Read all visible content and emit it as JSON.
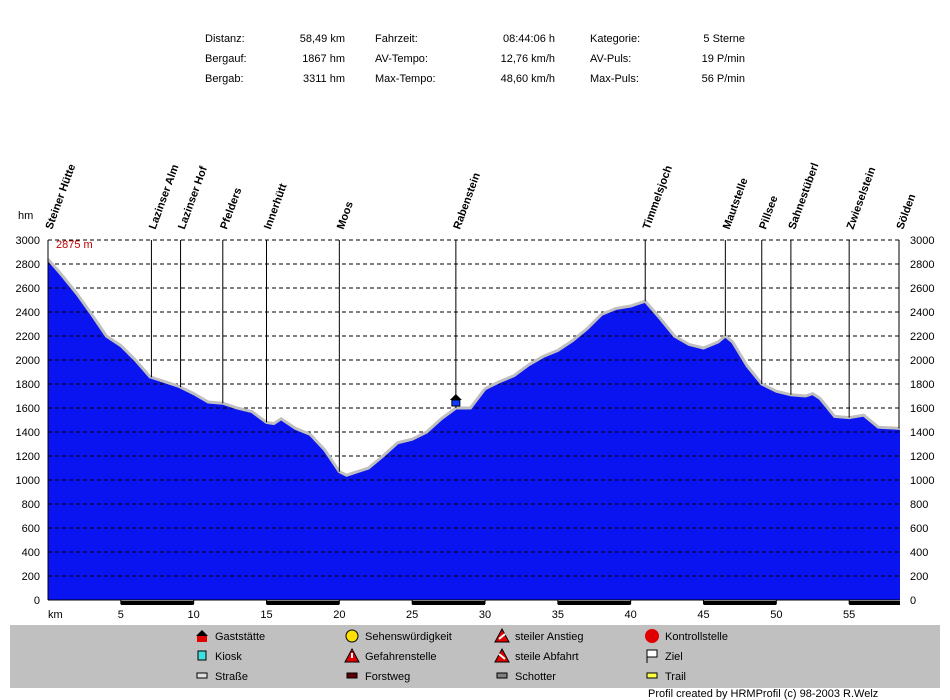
{
  "stats": [
    [
      {
        "label": "Distanz:",
        "value": "58,49 km"
      },
      {
        "label": "Fahrzeit:",
        "value": "08:44:06 h"
      },
      {
        "label": "Kategorie:",
        "value": "5 Sterne"
      }
    ],
    [
      {
        "label": "Bergauf:",
        "value": "1867 hm"
      },
      {
        "label": "AV-Tempo:",
        "value": "12,76 km/h"
      },
      {
        "label": "AV-Puls:",
        "value": "19 P/min"
      }
    ],
    [
      {
        "label": "Bergab:",
        "value": "3311 hm"
      },
      {
        "label": "Max-Tempo:",
        "value": "48,60 km/h"
      },
      {
        "label": "Max-Puls:",
        "value": "56 P/min"
      }
    ]
  ],
  "chart_data": {
    "type": "area",
    "x_label": "km",
    "y_label": "hm",
    "annotation": "2875 m",
    "color": "#0a14f0",
    "edge_color": "#bfbfbf",
    "grid": true,
    "xlim": [
      0,
      58.49
    ],
    "ylim": [
      0,
      3000
    ],
    "xticks": [
      5,
      10,
      15,
      20,
      25,
      30,
      35,
      40,
      45,
      50,
      55
    ],
    "yticks": [
      0,
      200,
      400,
      600,
      800,
      1000,
      1200,
      1400,
      1600,
      1800,
      2000,
      2200,
      2400,
      2600,
      2800,
      3000
    ],
    "x": [
      0,
      1,
      2,
      3,
      4,
      5,
      6,
      7,
      8,
      9,
      10,
      11,
      12,
      13,
      14,
      15,
      15.5,
      16,
      17,
      18,
      19,
      20,
      20.5,
      21,
      22,
      23,
      24,
      25,
      26,
      27,
      28,
      29,
      30,
      31,
      32,
      33,
      34,
      35,
      36,
      37,
      38,
      39,
      40,
      41,
      42,
      43,
      44,
      45,
      46,
      46.5,
      47,
      48,
      49,
      50,
      51,
      52,
      52.5,
      53,
      54,
      55,
      56,
      57,
      58.49
    ],
    "values": [
      2840,
      2700,
      2550,
      2380,
      2200,
      2120,
      2000,
      1860,
      1820,
      1780,
      1720,
      1650,
      1640,
      1600,
      1570,
      1480,
      1470,
      1510,
      1430,
      1380,
      1250,
      1070,
      1040,
      1060,
      1100,
      1200,
      1310,
      1340,
      1400,
      1510,
      1600,
      1600,
      1760,
      1820,
      1870,
      1960,
      2030,
      2080,
      2160,
      2260,
      2380,
      2430,
      2450,
      2490,
      2350,
      2200,
      2130,
      2100,
      2150,
      2200,
      2150,
      1950,
      1800,
      1740,
      1710,
      1700,
      1720,
      1680,
      1530,
      1520,
      1540,
      1440,
      1430
    ],
    "waypoints": [
      {
        "name": "Steiner Hütte",
        "km": 0
      },
      {
        "name": "Lazinser Alm",
        "km": 7.1
      },
      {
        "name": "Lazinser Hof",
        "km": 9.1
      },
      {
        "name": "Pfelders",
        "km": 12
      },
      {
        "name": "Innerhütt",
        "km": 15
      },
      {
        "name": "Moos",
        "km": 20
      },
      {
        "name": "Rabenstein",
        "km": 28
      },
      {
        "name": "Timmelsjoch",
        "km": 41
      },
      {
        "name": "Mautstelle",
        "km": 46.5
      },
      {
        "name": "Pillsee",
        "km": 49
      },
      {
        "name": "Sahnestüberl",
        "km": 51
      },
      {
        "name": "Zwieselstein",
        "km": 55
      },
      {
        "name": "Sölden",
        "km": 58.49
      }
    ]
  },
  "legend": [
    [
      "Gaststätte",
      "Sehenswürdigkeit",
      "steiler Anstieg",
      "Kontrollstelle"
    ],
    [
      "Kiosk",
      "Gefahrenstelle",
      "steile Abfahrt",
      "Ziel"
    ],
    [
      "Straße",
      "Forstweg",
      "Schotter",
      "Trail"
    ]
  ],
  "footer": "Profil created by HRMProfil (c) 98-2003 R.Welz"
}
